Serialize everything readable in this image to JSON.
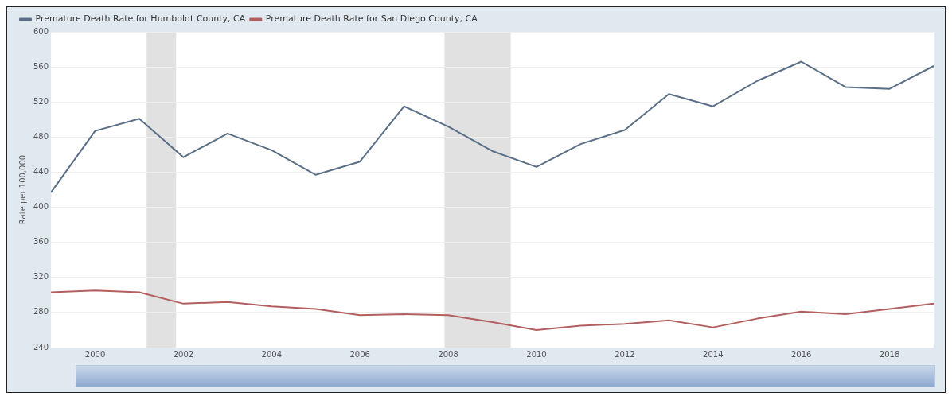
{
  "chart_data": {
    "type": "line",
    "ylabel": "Rate per 100,000",
    "x": [
      "1999",
      "2000",
      "2001",
      "2002",
      "2003",
      "2004",
      "2005",
      "2006",
      "2007",
      "2008",
      "2009",
      "2010",
      "2011",
      "2012",
      "2013",
      "2014",
      "2015",
      "2016",
      "2017",
      "2018",
      "2019"
    ],
    "series": [
      {
        "name": "Premature Death Rate for Humboldt County, CA",
        "color": "#5a6f86",
        "values": [
          417,
          487,
          501,
          457,
          484,
          465,
          437,
          452,
          515,
          492,
          464,
          446,
          472,
          488,
          529,
          515,
          544,
          566,
          537,
          535,
          561
        ]
      },
      {
        "name": "Premature Death Rate for San Diego County, CA",
        "color": "#b35f5f",
        "values": [
          303,
          305,
          303,
          290,
          292,
          287,
          284,
          277,
          278,
          277,
          269,
          260,
          265,
          267,
          271,
          263,
          273,
          281,
          278,
          284,
          290
        ]
      }
    ],
    "xlim": [
      "1999",
      "2019"
    ],
    "xticks": [
      {
        "value": "2000",
        "label": "2000"
      },
      {
        "value": "2002",
        "label": "2002"
      },
      {
        "value": "2004",
        "label": "2004"
      },
      {
        "value": "2006",
        "label": "2006"
      },
      {
        "value": "2008",
        "label": "2008"
      },
      {
        "value": "2010",
        "label": "2010"
      },
      {
        "value": "2012",
        "label": "2012"
      },
      {
        "value": "2014",
        "label": "2014"
      },
      {
        "value": "2016",
        "label": "2016"
      },
      {
        "value": "2018",
        "label": "2018"
      }
    ],
    "ylim": [
      240,
      600
    ],
    "yticks": [
      240,
      280,
      320,
      360,
      400,
      440,
      480,
      520,
      560,
      600
    ],
    "bands": [
      {
        "axis": "x",
        "from": "2001-03",
        "to": "2001-11",
        "color": "#e1e1e1"
      },
      {
        "axis": "x",
        "from": "2007-12",
        "to": "2009-06",
        "color": "#e1e1e1"
      }
    ],
    "grid": "y",
    "legend": "top left",
    "marker": "none",
    "line_style": "solid"
  }
}
